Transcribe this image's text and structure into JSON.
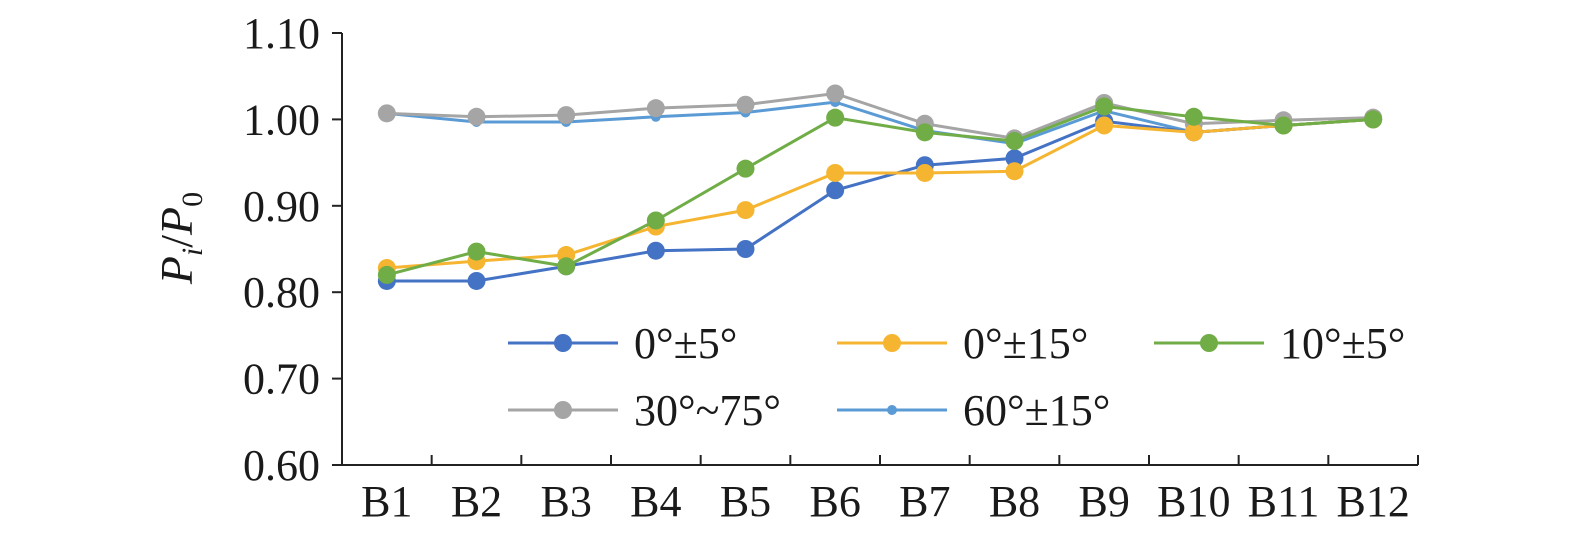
{
  "chart_data": {
    "type": "line",
    "title": "",
    "xlabel": "",
    "ylabel": {
      "base": "P",
      "sub_i": "i",
      "slash": "/",
      "sub_0": "0"
    },
    "categories": [
      "B1",
      "B2",
      "B3",
      "B4",
      "B5",
      "B6",
      "B7",
      "B8",
      "B9",
      "B10",
      "B11",
      "B12"
    ],
    "ylim": [
      0.6,
      1.1
    ],
    "yticks": [
      "0.60",
      "0.70",
      "0.80",
      "0.90",
      "1.00",
      "1.10"
    ],
    "grid": false,
    "legend_position": "bottom-center",
    "series": [
      {
        "name": "0°±5°",
        "color": "#4472C4",
        "marker": "circle-large",
        "values": [
          0.813,
          0.813,
          0.83,
          0.848,
          0.85,
          0.918,
          0.947,
          0.955,
          0.998,
          0.985,
          0.993,
          1.0
        ]
      },
      {
        "name": "0°±15°",
        "color": "#F5B531",
        "marker": "circle-large",
        "values": [
          0.828,
          0.836,
          0.843,
          0.876,
          0.895,
          0.938,
          0.938,
          0.94,
          0.993,
          0.985,
          0.993,
          1.0
        ]
      },
      {
        "name": "10°±5°",
        "color": "#70AD47",
        "marker": "circle-large",
        "values": [
          0.82,
          0.847,
          0.83,
          0.883,
          0.943,
          1.002,
          0.985,
          0.975,
          1.015,
          1.003,
          0.993,
          1.0
        ]
      },
      {
        "name": "30°~75°",
        "color": "#A5A5A5",
        "marker": "circle-large",
        "values": [
          1.007,
          1.003,
          1.005,
          1.013,
          1.017,
          1.03,
          0.995,
          0.978,
          1.019,
          0.995,
          0.999,
          1.002
        ]
      },
      {
        "name": "60°±15°",
        "color": "#5B9BD5",
        "marker": "circle-small",
        "values": [
          1.007,
          0.997,
          0.997,
          1.003,
          1.008,
          1.02,
          0.987,
          0.972,
          1.01,
          0.985,
          0.993,
          1.0
        ]
      }
    ]
  }
}
